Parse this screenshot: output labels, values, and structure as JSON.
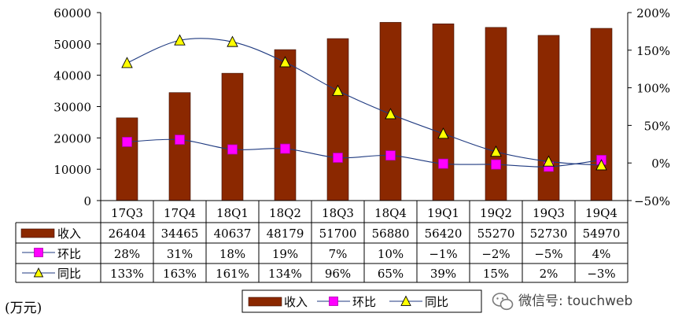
{
  "chart_data": {
    "type": "bar",
    "categories": [
      "17Q3",
      "17Q4",
      "18Q1",
      "18Q2",
      "18Q3",
      "18Q4",
      "19Q1",
      "19Q2",
      "19Q3",
      "19Q4"
    ],
    "series": [
      {
        "name": "收入",
        "type": "bar",
        "axis": "left",
        "values": [
          26404,
          34465,
          40637,
          48179,
          51700,
          56880,
          56420,
          55270,
          52730,
          54970
        ],
        "labels": [
          "26404",
          "34465",
          "40637",
          "48179",
          "51700",
          "56880",
          "56420",
          "55270",
          "52730",
          "54970"
        ]
      },
      {
        "name": "环比",
        "type": "line",
        "axis": "right",
        "values": [
          28,
          31,
          18,
          19,
          7,
          10,
          -1,
          -2,
          -5,
          4
        ],
        "labels": [
          "28%",
          "31%",
          "18%",
          "19%",
          "7%",
          "10%",
          "−1%",
          "−2%",
          "−5%",
          "4%"
        ]
      },
      {
        "name": "同比",
        "type": "line",
        "axis": "right",
        "values": [
          133,
          163,
          161,
          134,
          96,
          65,
          39,
          15,
          2,
          -3
        ],
        "labels": [
          "133%",
          "163%",
          "161%",
          "134%",
          "96%",
          "65%",
          "39%",
          "15%",
          "2%",
          "−3%"
        ]
      }
    ],
    "left_axis": {
      "ylim": [
        0,
        60000
      ],
      "ticks": [
        "0",
        "10000",
        "20000",
        "30000",
        "40000",
        "50000",
        "60000"
      ]
    },
    "right_axis": {
      "ylim": [
        -50,
        200
      ],
      "ticks": [
        "−50%",
        "0%",
        "50%",
        "100%",
        "150%",
        "200%"
      ]
    },
    "unit_label": "(万元)",
    "legend": {
      "position": "bottom",
      "items": [
        "收入",
        "环比",
        "同比"
      ]
    },
    "colors": {
      "bar": "#8b2800",
      "hb_marker": "#ff00ff",
      "tb_marker": "#ffff00",
      "line": "#1f3a80"
    },
    "grid": false,
    "data_table": true
  },
  "watermark": {
    "text": "微信号: touchweb",
    "icon": "wechat-icon"
  }
}
